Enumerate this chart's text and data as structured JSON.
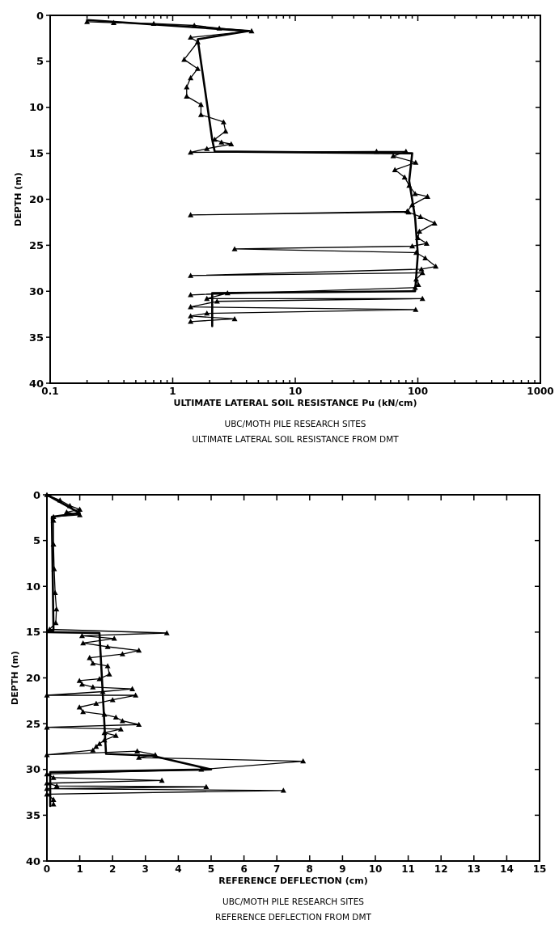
{
  "chart_data": [
    {
      "type": "line",
      "xlabel": "ULTIMATE LATERAL SOIL RESISTANCE Pu (kN/cm)",
      "ylabel": "DEPTH (m)",
      "log": "x",
      "xlim": [
        0.1,
        1000
      ],
      "ylim": [
        40,
        0
      ],
      "xticks": [
        0.1,
        {
          "value": 0.2,
          "label": null
        },
        {
          "value": 0.3,
          "label": null
        },
        {
          "value": 0.4,
          "label": null
        },
        {
          "value": 0.5,
          "label": null
        },
        {
          "value": 0.6,
          "label": null
        },
        {
          "value": 0.7,
          "label": null
        },
        {
          "value": 0.8,
          "label": null
        },
        {
          "value": 0.9,
          "label": null
        },
        1,
        {
          "value": 2,
          "label": null
        },
        {
          "value": 3,
          "label": null
        },
        {
          "value": 4,
          "label": null
        },
        {
          "value": 5,
          "label": null
        },
        {
          "value": 6,
          "label": null
        },
        {
          "value": 7,
          "label": null
        },
        {
          "value": 8,
          "label": null
        },
        {
          "value": 9,
          "label": null
        },
        10,
        {
          "value": 20,
          "label": null
        },
        {
          "value": 30,
          "label": null
        },
        {
          "value": 40,
          "label": null
        },
        {
          "value": 50,
          "label": null
        },
        {
          "value": 60,
          "label": null
        },
        {
          "value": 70,
          "label": null
        },
        {
          "value": 80,
          "label": null
        },
        {
          "value": 90,
          "label": null
        },
        100,
        {
          "value": 200,
          "label": null
        },
        {
          "value": 300,
          "label": null
        },
        {
          "value": 400,
          "label": null
        },
        {
          "value": 500,
          "label": null
        },
        {
          "value": 600,
          "label": null
        },
        {
          "value": 700,
          "label": null
        },
        {
          "value": 800,
          "label": null
        },
        {
          "value": 900,
          "label": null
        },
        1000
      ],
      "yticks": [
        0,
        5,
        10,
        15,
        20,
        25,
        30,
        35,
        40
      ],
      "series": [
        {
          "color": "#000000",
          "marker": "triangle",
          "x": [
            0.2,
            0.33,
            0.7,
            1.5,
            2.4,
            4.4,
            1.4,
            1.6,
            1.24,
            1.6,
            1.4,
            1.3,
            1.3,
            1.7,
            1.7,
            2.6,
            2.7,
            2.2,
            2.5,
            3.0,
            1.9,
            1.4,
            46,
            80,
            63,
            96,
            65,
            78,
            85,
            95,
            120,
            90,
            82,
            1.4,
            84,
            105,
            137,
            103,
            100,
            118,
            90,
            3.2,
            97,
            115,
            140,
            107,
            1.4,
            109,
            97,
            101,
            95,
            1.4,
            2.8,
            1.9,
            109,
            2.3,
            1.4,
            96,
            1.9,
            1.4,
            3.2,
            1.4
          ],
          "values": [
            0.7,
            0.8,
            0.9,
            1.1,
            1.4,
            1.7,
            2.4,
            2.9,
            4.8,
            5.8,
            6.8,
            7.8,
            8.8,
            9.7,
            10.8,
            11.6,
            12.6,
            13.5,
            13.8,
            14.0,
            14.5,
            14.9,
            14.8,
            14.8,
            15.3,
            16.0,
            16.8,
            17.6,
            18.5,
            19.4,
            19.7,
            20.6,
            21.3,
            21.7,
            21.4,
            21.9,
            22.6,
            23.5,
            24.2,
            24.8,
            25.1,
            25.4,
            25.8,
            26.4,
            27.3,
            27.6,
            28.3,
            28.0,
            28.7,
            29.3,
            29.6,
            30.4,
            30.2,
            30.8,
            30.8,
            31.1,
            31.7,
            32.0,
            32.4,
            32.7,
            33.0,
            33.3
          ]
        },
        {
          "color": "#000000",
          "marker": "none",
          "x": [
            0.2,
            4.2,
            1.6,
            2.1,
            2.2,
            90,
            85,
            95,
            100,
            95,
            2.1,
            2.1
          ],
          "values": [
            0.5,
            1.7,
            2.6,
            13.5,
            14.8,
            15,
            18,
            22,
            26,
            30,
            30.2,
            33.8
          ]
        }
      ],
      "annotations": [
        "UBC/MOTH PILE RESEARCH SITES",
        "ULTIMATE LATERAL SOIL RESISTANCE FROM DMT"
      ]
    },
    {
      "type": "line",
      "xlabel": "REFERENCE DEFLECTION (cm)",
      "ylabel": "DEPTH (m)",
      "xlim": [
        0,
        15
      ],
      "ylim": [
        40,
        0
      ],
      "xticks": [
        0,
        1,
        2,
        3,
        4,
        5,
        6,
        7,
        8,
        9,
        10,
        11,
        12,
        13,
        14,
        15
      ],
      "yticks": [
        0,
        5,
        10,
        15,
        20,
        25,
        30,
        35,
        40
      ],
      "series": [
        {
          "color": "#000000",
          "marker": "triangle",
          "x": [
            0,
            0.4,
            0.7,
            1.0,
            0.6,
            1.0,
            0.2,
            0.2,
            0.2,
            0.22,
            0.25,
            0.29,
            0.27,
            0.08,
            3.65,
            1.07,
            2.05,
            1.1,
            1.85,
            2.8,
            2.3,
            1.3,
            1.4,
            1.85,
            1.9,
            1.6,
            0.99,
            1.07,
            1.4,
            2.6,
            1.7,
            0,
            2.7,
            2.0,
            1.5,
            0.99,
            1.1,
            1.75,
            2.1,
            2.3,
            2.8,
            0,
            2.25,
            1.75,
            2.1,
            1.75,
            1.6,
            1.5,
            1.4,
            0,
            2.75,
            3.3,
            2.8,
            7.8,
            4.7,
            0,
            0.2,
            3.5,
            0,
            0.3,
            4.85,
            0,
            7.2,
            0,
            0.2,
            0.2
          ],
          "values": [
            0,
            0.6,
            1.2,
            1.6,
            1.9,
            2.2,
            2.4,
            2.8,
            5.4,
            8.1,
            10.7,
            12.5,
            14.0,
            14.7,
            15.1,
            15.4,
            15.7,
            16.2,
            16.6,
            17.0,
            17.4,
            17.8,
            18.4,
            18.7,
            19.6,
            20.1,
            20.3,
            20.7,
            21.0,
            21.2,
            21.5,
            21.9,
            21.9,
            22.4,
            22.8,
            23.2,
            23.7,
            24.0,
            24.3,
            24.7,
            25.1,
            25.4,
            25.6,
            26.0,
            26.3,
            26.8,
            27.2,
            27.5,
            27.9,
            28.4,
            28.0,
            28.4,
            28.7,
            29.1,
            30.0,
            30.5,
            30.9,
            31.2,
            31.5,
            31.8,
            31.9,
            32.1,
            32.3,
            32.7,
            33.3,
            33.8
          ]
        },
        {
          "color": "#000000",
          "marker": "none",
          "x": [
            0,
            1.0,
            0.15,
            0.2,
            0,
            1.6,
            1.8,
            3.2,
            5.0,
            0.1,
            0.1
          ],
          "values": [
            0,
            2.0,
            2.4,
            14.8,
            15,
            15.1,
            28.3,
            28.5,
            30.0,
            30.3,
            34
          ]
        }
      ],
      "annotations": [
        "UBC/MOTH PILE RESEARCH SITES",
        "REFERENCE DEFLECTION FROM DMT"
      ]
    }
  ]
}
